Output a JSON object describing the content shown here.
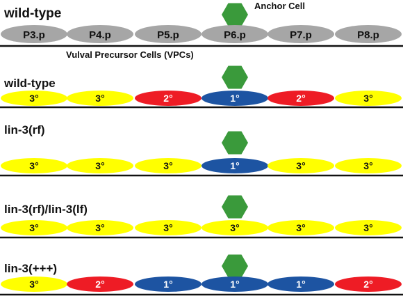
{
  "colors": {
    "gray": "#a6a6a6",
    "yellow": "#ffff00",
    "red": "#ee1c25",
    "blue": "#1d54a2",
    "anchor": "#3a9a3b",
    "line": "#111111"
  },
  "labels": {
    "anchor_cell": "Anchor Cell",
    "vpc": "Vulval Precursor Cells (VPCs)"
  },
  "rows": [
    {
      "title": "wild-type",
      "cells": [
        {
          "label": "P3.p",
          "color": "gray"
        },
        {
          "label": "P4.p",
          "color": "gray"
        },
        {
          "label": "P5.p",
          "color": "gray"
        },
        {
          "label": "P6.p",
          "color": "gray"
        },
        {
          "label": "P7.p",
          "color": "gray"
        },
        {
          "label": "P8.p",
          "color": "gray"
        }
      ]
    },
    {
      "title": "wild-type",
      "cells": [
        {
          "label": "3°",
          "color": "yellow"
        },
        {
          "label": "3°",
          "color": "yellow"
        },
        {
          "label": "2°",
          "color": "red"
        },
        {
          "label": "1°",
          "color": "blue"
        },
        {
          "label": "2°",
          "color": "red"
        },
        {
          "label": "3°",
          "color": "yellow"
        }
      ]
    },
    {
      "title": "lin-3(rf)",
      "cells": [
        {
          "label": "3°",
          "color": "yellow"
        },
        {
          "label": "3°",
          "color": "yellow"
        },
        {
          "label": "3°",
          "color": "yellow"
        },
        {
          "label": "1°",
          "color": "blue"
        },
        {
          "label": "3°",
          "color": "yellow"
        },
        {
          "label": "3°",
          "color": "yellow"
        }
      ]
    },
    {
      "title": "lin-3(rf)/lin-3(lf)",
      "cells": [
        {
          "label": "3°",
          "color": "yellow"
        },
        {
          "label": "3°",
          "color": "yellow"
        },
        {
          "label": "3°",
          "color": "yellow"
        },
        {
          "label": "3°",
          "color": "yellow"
        },
        {
          "label": "3°",
          "color": "yellow"
        },
        {
          "label": "3°",
          "color": "yellow"
        }
      ]
    },
    {
      "title": "lin-3(+++)",
      "cells": [
        {
          "label": "3°",
          "color": "yellow"
        },
        {
          "label": "2°",
          "color": "red"
        },
        {
          "label": "1°",
          "color": "blue"
        },
        {
          "label": "1°",
          "color": "blue"
        },
        {
          "label": "1°",
          "color": "blue"
        },
        {
          "label": "2°",
          "color": "red"
        }
      ]
    }
  ]
}
